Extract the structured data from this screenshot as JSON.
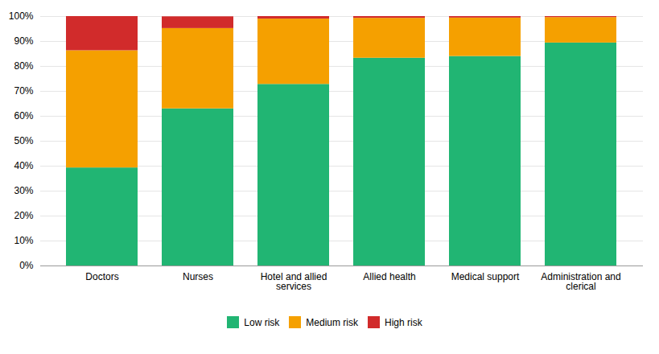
{
  "chart_data": {
    "type": "bar",
    "stacked": true,
    "categories": [
      "Doctors",
      "Nurses",
      "Hotel and allied\nservices",
      "Allied health",
      "Medical support",
      "Administration and\nclerical"
    ],
    "series": [
      {
        "name": "Low risk",
        "color": "#21B573",
        "values": [
          39.3,
          63.0,
          72.8,
          83.3,
          84.0,
          89.4
        ]
      },
      {
        "name": "Medium risk",
        "color": "#F5A000",
        "values": [
          47.0,
          32.2,
          26.2,
          16.0,
          15.4,
          10.2
        ]
      },
      {
        "name": "High risk",
        "color": "#D12B2B",
        "values": [
          13.7,
          4.7,
          1.0,
          0.7,
          0.6,
          0.4
        ]
      }
    ],
    "ylim": [
      0,
      100
    ],
    "yticks": [
      {
        "value": 0,
        "label": "0%"
      },
      {
        "value": 10,
        "label": "10%"
      },
      {
        "value": 20,
        "label": "20%"
      },
      {
        "value": 30,
        "label": "30%"
      },
      {
        "value": 40,
        "label": "40%"
      },
      {
        "value": 50,
        "label": "50%"
      },
      {
        "value": 60,
        "label": "60%"
      },
      {
        "value": 70,
        "label": "70%"
      },
      {
        "value": 80,
        "label": "80%"
      },
      {
        "value": 90,
        "label": "90%"
      },
      {
        "value": 100,
        "label": "100%"
      }
    ],
    "grid": true,
    "legend": "bottom"
  }
}
